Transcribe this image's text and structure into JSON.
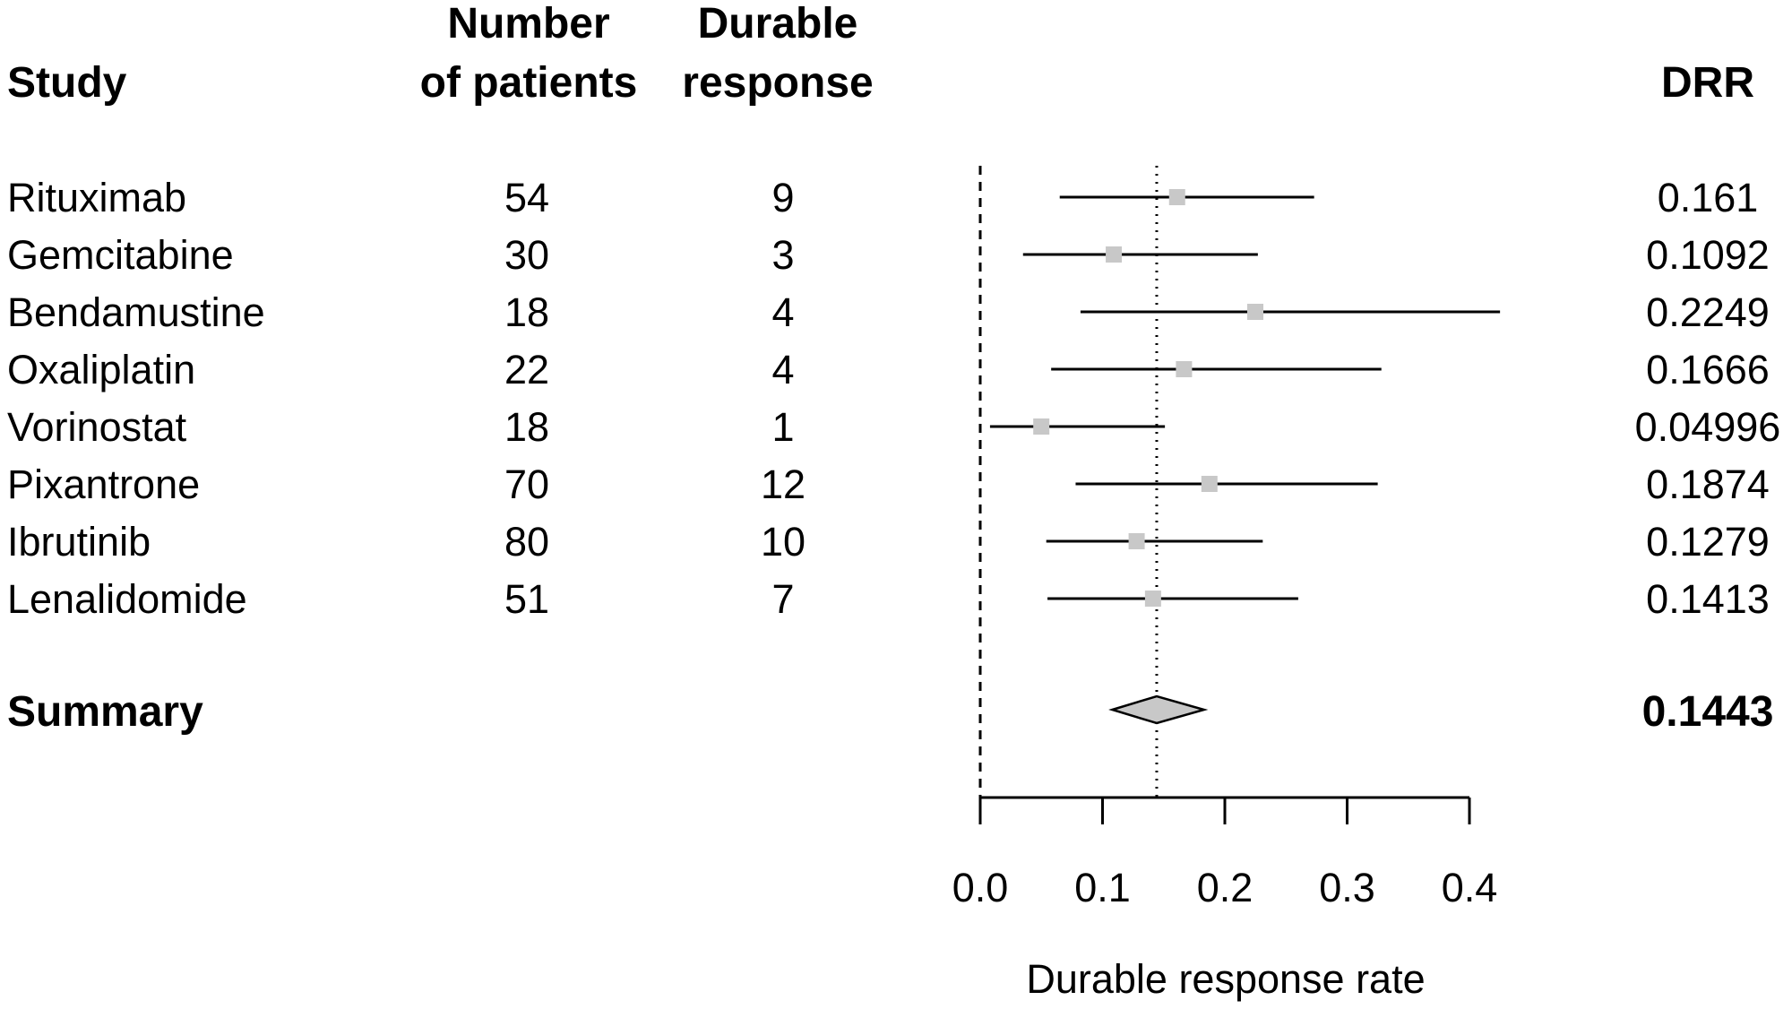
{
  "headers": {
    "study": "Study",
    "patients_line1": "Number",
    "patients_line2": "of patients",
    "durable_line1": "Durable",
    "durable_line2": "response",
    "drr": "DRR"
  },
  "rows": [
    {
      "study": "Rituximab",
      "patients": "54",
      "durable": "9",
      "drr": "0.161"
    },
    {
      "study": "Gemcitabine",
      "patients": "30",
      "durable": "3",
      "drr": "0.1092"
    },
    {
      "study": "Bendamustine",
      "patients": "18",
      "durable": "4",
      "drr": "0.2249"
    },
    {
      "study": "Oxaliplatin",
      "patients": "22",
      "durable": "4",
      "drr": "0.1666"
    },
    {
      "study": "Vorinostat",
      "patients": "18",
      "durable": "1",
      "drr": "0.04996"
    },
    {
      "study": "Pixantrone",
      "patients": "70",
      "durable": "12",
      "drr": "0.1874"
    },
    {
      "study": "Ibrutinib",
      "patients": "80",
      "durable": "10",
      "drr": "0.1279"
    },
    {
      "study": "Lenalidomide",
      "patients": "51",
      "durable": "7",
      "drr": "0.1413"
    }
  ],
  "summary": {
    "label": "Summary",
    "drr": "0.1443"
  },
  "chart_data": {
    "type": "forest",
    "xlabel": "Durable response rate",
    "xlim": [
      0.0,
      0.4
    ],
    "xticks": [
      0.0,
      0.1,
      0.2,
      0.3,
      0.4
    ],
    "xtick_labels": [
      "0.0",
      "0.1",
      "0.2",
      "0.3",
      "0.4"
    ],
    "null_line": 0.0,
    "summary_line": 0.1443,
    "studies": [
      {
        "name": "Rituximab",
        "estimate": 0.161,
        "ci": [
          0.065,
          0.273
        ]
      },
      {
        "name": "Gemcitabine",
        "estimate": 0.1092,
        "ci": [
          0.035,
          0.227
        ]
      },
      {
        "name": "Bendamustine",
        "estimate": 0.2249,
        "ci": [
          0.082,
          0.425
        ]
      },
      {
        "name": "Oxaliplatin",
        "estimate": 0.1666,
        "ci": [
          0.058,
          0.328
        ]
      },
      {
        "name": "Vorinostat",
        "estimate": 0.04996,
        "ci": [
          0.008,
          0.151
        ]
      },
      {
        "name": "Pixantrone",
        "estimate": 0.1874,
        "ci": [
          0.078,
          0.325
        ]
      },
      {
        "name": "Ibrutinib",
        "estimate": 0.1279,
        "ci": [
          0.054,
          0.231
        ]
      },
      {
        "name": "Lenalidomide",
        "estimate": 0.1413,
        "ci": [
          0.055,
          0.26
        ]
      }
    ],
    "summary": {
      "estimate": 0.1443,
      "ci": [
        0.108,
        0.183
      ]
    },
    "colors": {
      "marker": "#c8c8c8",
      "diamond_fill": "#c8c8c8",
      "line": "#000000"
    }
  }
}
